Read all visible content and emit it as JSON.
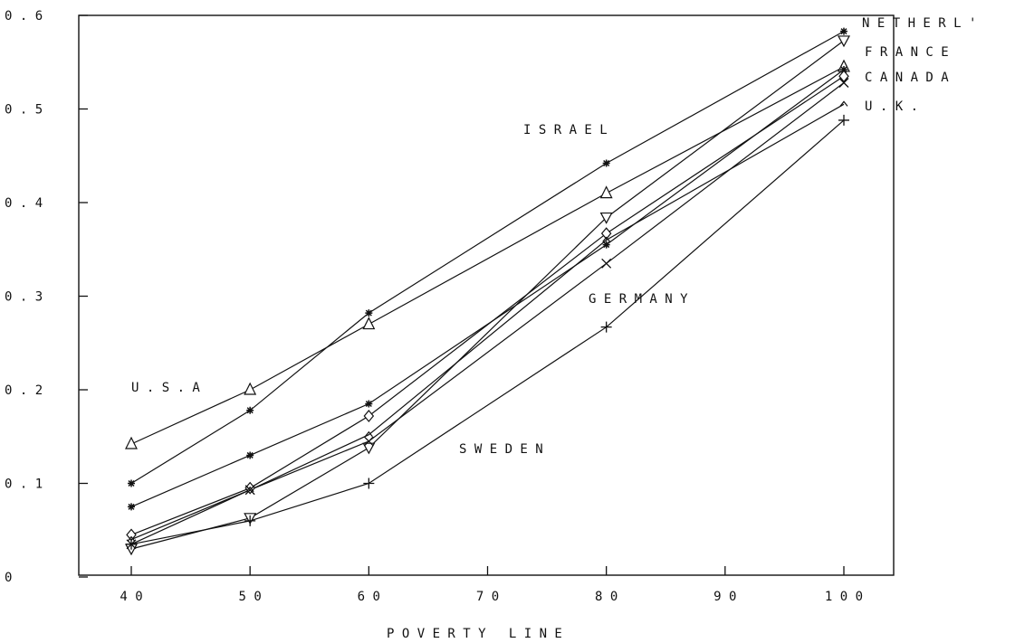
{
  "chart_data": {
    "type": "line",
    "title": "",
    "xlabel": "P O V E R T Y   L I N E",
    "ylabel": "",
    "xlim": [
      40,
      100
    ],
    "ylim": [
      0,
      0.6
    ],
    "x_ticks": [
      40,
      50,
      60,
      70,
      80,
      90,
      100
    ],
    "x_tick_labels": [
      "4 0",
      "5 0",
      "6 0",
      "7 0",
      "8 0",
      "9 0",
      "1 0 0"
    ],
    "y_ticks": [
      0,
      0.1,
      0.2,
      0.3,
      0.4,
      0.5,
      0.6
    ],
    "y_tick_labels": [
      "0",
      "0 . 1",
      "0 . 2",
      "0 . 3",
      "0 . 4",
      "0 . 5",
      "0 . 6"
    ],
    "grid": false,
    "x": [
      40,
      50,
      60,
      80,
      100
    ],
    "series": [
      {
        "name": "U . S . A",
        "marker": "triangle",
        "values": [
          0.142,
          0.2,
          0.27,
          0.41,
          0.545
        ]
      },
      {
        "name": "I S R A E L",
        "marker": "asterisk",
        "values": [
          0.1,
          0.178,
          0.282,
          0.442,
          0.583
        ]
      },
      {
        "name": "N E T H E R L '",
        "marker": "triangle-down",
        "values": [
          0.03,
          0.063,
          0.138,
          0.384,
          0.573
        ]
      },
      {
        "name": "F R A N C E",
        "marker": "asterisk",
        "values": [
          0.075,
          0.13,
          0.185,
          0.355,
          0.542
        ]
      },
      {
        "name": "C A N A D A",
        "marker": "diamond",
        "values": [
          0.045,
          0.095,
          0.172,
          0.367,
          0.535
        ]
      },
      {
        "name": "U . K .",
        "marker": "caret",
        "values": [
          0.04,
          0.093,
          0.152,
          0.36,
          0.505
        ]
      },
      {
        "name": "G E R M A N Y",
        "marker": "x",
        "values": [
          0.035,
          0.093,
          0.145,
          0.335,
          0.528
        ]
      },
      {
        "name": "S W E D E N",
        "marker": "plus",
        "values": [
          0.035,
          0.06,
          0.1,
          0.267,
          0.488
        ]
      }
    ]
  }
}
